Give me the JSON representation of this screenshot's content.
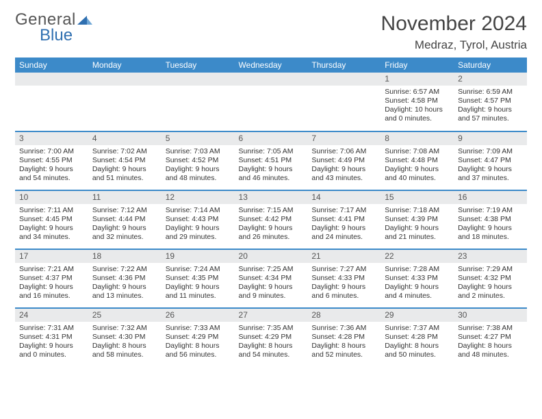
{
  "logo": {
    "top": "General",
    "bottom": "Blue"
  },
  "title": "November 2024",
  "location": "Medraz, Tyrol, Austria",
  "colors": {
    "header_bg": "#3c8ac9",
    "header_text": "#ffffff",
    "daynum_bg": "#e9eaeb",
    "text": "#333333",
    "rule": "#3c8ac9",
    "logo_gray": "#555555",
    "logo_blue": "#2f6fb0"
  },
  "weekdays": [
    "Sunday",
    "Monday",
    "Tuesday",
    "Wednesday",
    "Thursday",
    "Friday",
    "Saturday"
  ],
  "weeks": [
    [
      {
        "blank": true
      },
      {
        "blank": true
      },
      {
        "blank": true
      },
      {
        "blank": true
      },
      {
        "blank": true
      },
      {
        "n": "1",
        "sr": "Sunrise: 6:57 AM",
        "ss": "Sunset: 4:58 PM",
        "d1": "Daylight: 10 hours",
        "d2": "and 0 minutes."
      },
      {
        "n": "2",
        "sr": "Sunrise: 6:59 AM",
        "ss": "Sunset: 4:57 PM",
        "d1": "Daylight: 9 hours",
        "d2": "and 57 minutes."
      }
    ],
    [
      {
        "n": "3",
        "sr": "Sunrise: 7:00 AM",
        "ss": "Sunset: 4:55 PM",
        "d1": "Daylight: 9 hours",
        "d2": "and 54 minutes."
      },
      {
        "n": "4",
        "sr": "Sunrise: 7:02 AM",
        "ss": "Sunset: 4:54 PM",
        "d1": "Daylight: 9 hours",
        "d2": "and 51 minutes."
      },
      {
        "n": "5",
        "sr": "Sunrise: 7:03 AM",
        "ss": "Sunset: 4:52 PM",
        "d1": "Daylight: 9 hours",
        "d2": "and 48 minutes."
      },
      {
        "n": "6",
        "sr": "Sunrise: 7:05 AM",
        "ss": "Sunset: 4:51 PM",
        "d1": "Daylight: 9 hours",
        "d2": "and 46 minutes."
      },
      {
        "n": "7",
        "sr": "Sunrise: 7:06 AM",
        "ss": "Sunset: 4:49 PM",
        "d1": "Daylight: 9 hours",
        "d2": "and 43 minutes."
      },
      {
        "n": "8",
        "sr": "Sunrise: 7:08 AM",
        "ss": "Sunset: 4:48 PM",
        "d1": "Daylight: 9 hours",
        "d2": "and 40 minutes."
      },
      {
        "n": "9",
        "sr": "Sunrise: 7:09 AM",
        "ss": "Sunset: 4:47 PM",
        "d1": "Daylight: 9 hours",
        "d2": "and 37 minutes."
      }
    ],
    [
      {
        "n": "10",
        "sr": "Sunrise: 7:11 AM",
        "ss": "Sunset: 4:45 PM",
        "d1": "Daylight: 9 hours",
        "d2": "and 34 minutes."
      },
      {
        "n": "11",
        "sr": "Sunrise: 7:12 AM",
        "ss": "Sunset: 4:44 PM",
        "d1": "Daylight: 9 hours",
        "d2": "and 32 minutes."
      },
      {
        "n": "12",
        "sr": "Sunrise: 7:14 AM",
        "ss": "Sunset: 4:43 PM",
        "d1": "Daylight: 9 hours",
        "d2": "and 29 minutes."
      },
      {
        "n": "13",
        "sr": "Sunrise: 7:15 AM",
        "ss": "Sunset: 4:42 PM",
        "d1": "Daylight: 9 hours",
        "d2": "and 26 minutes."
      },
      {
        "n": "14",
        "sr": "Sunrise: 7:17 AM",
        "ss": "Sunset: 4:41 PM",
        "d1": "Daylight: 9 hours",
        "d2": "and 24 minutes."
      },
      {
        "n": "15",
        "sr": "Sunrise: 7:18 AM",
        "ss": "Sunset: 4:39 PM",
        "d1": "Daylight: 9 hours",
        "d2": "and 21 minutes."
      },
      {
        "n": "16",
        "sr": "Sunrise: 7:19 AM",
        "ss": "Sunset: 4:38 PM",
        "d1": "Daylight: 9 hours",
        "d2": "and 18 minutes."
      }
    ],
    [
      {
        "n": "17",
        "sr": "Sunrise: 7:21 AM",
        "ss": "Sunset: 4:37 PM",
        "d1": "Daylight: 9 hours",
        "d2": "and 16 minutes."
      },
      {
        "n": "18",
        "sr": "Sunrise: 7:22 AM",
        "ss": "Sunset: 4:36 PM",
        "d1": "Daylight: 9 hours",
        "d2": "and 13 minutes."
      },
      {
        "n": "19",
        "sr": "Sunrise: 7:24 AM",
        "ss": "Sunset: 4:35 PM",
        "d1": "Daylight: 9 hours",
        "d2": "and 11 minutes."
      },
      {
        "n": "20",
        "sr": "Sunrise: 7:25 AM",
        "ss": "Sunset: 4:34 PM",
        "d1": "Daylight: 9 hours",
        "d2": "and 9 minutes."
      },
      {
        "n": "21",
        "sr": "Sunrise: 7:27 AM",
        "ss": "Sunset: 4:33 PM",
        "d1": "Daylight: 9 hours",
        "d2": "and 6 minutes."
      },
      {
        "n": "22",
        "sr": "Sunrise: 7:28 AM",
        "ss": "Sunset: 4:33 PM",
        "d1": "Daylight: 9 hours",
        "d2": "and 4 minutes."
      },
      {
        "n": "23",
        "sr": "Sunrise: 7:29 AM",
        "ss": "Sunset: 4:32 PM",
        "d1": "Daylight: 9 hours",
        "d2": "and 2 minutes."
      }
    ],
    [
      {
        "n": "24",
        "sr": "Sunrise: 7:31 AM",
        "ss": "Sunset: 4:31 PM",
        "d1": "Daylight: 9 hours",
        "d2": "and 0 minutes."
      },
      {
        "n": "25",
        "sr": "Sunrise: 7:32 AM",
        "ss": "Sunset: 4:30 PM",
        "d1": "Daylight: 8 hours",
        "d2": "and 58 minutes."
      },
      {
        "n": "26",
        "sr": "Sunrise: 7:33 AM",
        "ss": "Sunset: 4:29 PM",
        "d1": "Daylight: 8 hours",
        "d2": "and 56 minutes."
      },
      {
        "n": "27",
        "sr": "Sunrise: 7:35 AM",
        "ss": "Sunset: 4:29 PM",
        "d1": "Daylight: 8 hours",
        "d2": "and 54 minutes."
      },
      {
        "n": "28",
        "sr": "Sunrise: 7:36 AM",
        "ss": "Sunset: 4:28 PM",
        "d1": "Daylight: 8 hours",
        "d2": "and 52 minutes."
      },
      {
        "n": "29",
        "sr": "Sunrise: 7:37 AM",
        "ss": "Sunset: 4:28 PM",
        "d1": "Daylight: 8 hours",
        "d2": "and 50 minutes."
      },
      {
        "n": "30",
        "sr": "Sunrise: 7:38 AM",
        "ss": "Sunset: 4:27 PM",
        "d1": "Daylight: 8 hours",
        "d2": "and 48 minutes."
      }
    ]
  ]
}
